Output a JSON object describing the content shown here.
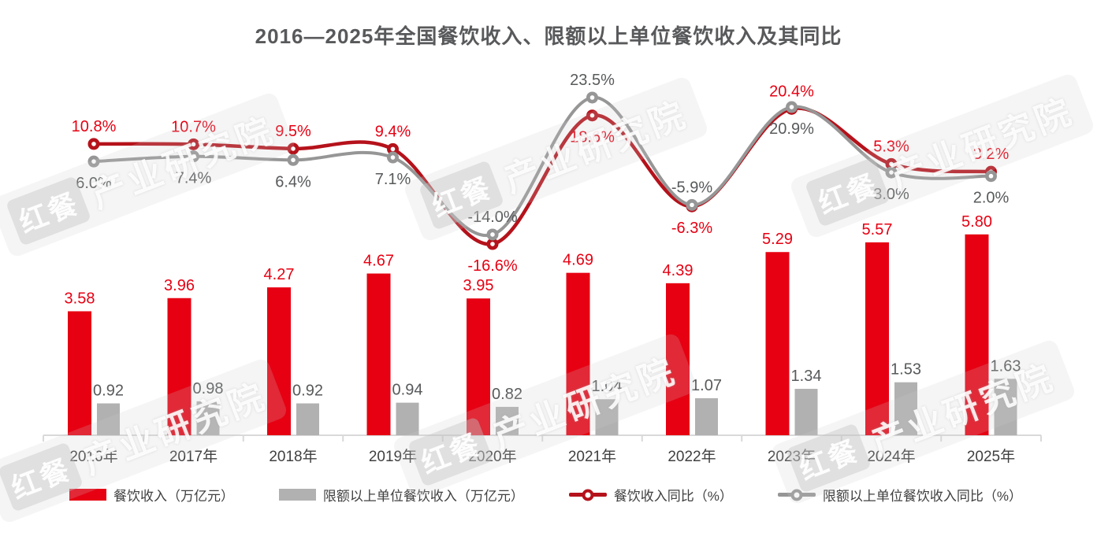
{
  "title": "2016—2025年全国餐饮收入、限额以上单位餐饮收入及其同比",
  "watermark": {
    "logo": "红餐",
    "text": "产业研究院"
  },
  "colors": {
    "bar_red": "#e60012",
    "bar_gray": "#b1b1b1",
    "line_red": "#b5121b",
    "line_gray": "#969696",
    "label_red": "#e60012",
    "label_dark_gray": "#57595b",
    "axis_gray": "#d9d9d9",
    "title_gray": "#58595b",
    "xaxis_text": "#404040"
  },
  "legend": [
    {
      "label": "餐饮收入（万亿元）",
      "type": "bar",
      "color": "#e60012"
    },
    {
      "label": "限额以上单位餐饮收入（万亿元）",
      "type": "bar",
      "color": "#b1b1b1"
    },
    {
      "label": "餐饮收入同比（%）",
      "type": "line",
      "color": "#b5121b"
    },
    {
      "label": "限额以上单位餐饮收入同比（%）",
      "type": "line",
      "color": "#969696"
    }
  ],
  "chart_data": {
    "type": "combo bar + line",
    "title": "2016—2025年全国餐饮收入、限额以上单位餐饮收入及其同比",
    "categories": [
      "2016年",
      "2017年",
      "2018年",
      "2019年",
      "2020年",
      "2021年",
      "2022年",
      "2023年",
      "2024年",
      "2025年"
    ],
    "bar_series": [
      {
        "key": "catering-revenue",
        "name": "餐饮收入（万亿元）",
        "color": "#e60012",
        "label_color": "#e60012",
        "values": [
          3.58,
          3.96,
          4.27,
          4.67,
          3.95,
          4.69,
          4.39,
          5.29,
          5.57,
          5.8
        ]
      },
      {
        "key": "large-scale-revenue",
        "name": "限额以上单位餐饮收入（万亿元）",
        "color": "#b1b1b1",
        "label_color": "#57595b",
        "values": [
          0.92,
          0.98,
          0.92,
          0.94,
          0.82,
          1.04,
          1.07,
          1.34,
          1.53,
          1.63
        ]
      }
    ],
    "line_series": [
      {
        "key": "catering-revenue-yoy",
        "name": "餐饮收入同比（%）",
        "color": "#b5121b",
        "label_color": "#e60012",
        "values": [
          10.8,
          10.7,
          9.5,
          9.4,
          -16.6,
          18.6,
          -6.3,
          20.4,
          5.3,
          3.2
        ],
        "label_side": [
          "above",
          "above",
          "above",
          "above",
          "below",
          "below",
          "below",
          "above",
          "above",
          "above"
        ]
      },
      {
        "key": "large-scale-revenue-yoy",
        "name": "限额以上单位餐饮收入同比（%）",
        "color": "#969696",
        "label_color": "#57595b",
        "values": [
          6.0,
          7.4,
          6.4,
          7.1,
          -14.0,
          23.5,
          -5.9,
          20.9,
          3.0,
          2.0
        ],
        "label_side": [
          "below",
          "below",
          "below",
          "below",
          "above",
          "above",
          "above",
          "below",
          "below",
          "below"
        ]
      }
    ],
    "bar_axis": {
      "unit": "万亿元",
      "range_hint": [
        0,
        6
      ],
      "visible": false
    },
    "line_axis": {
      "unit": "%",
      "range_hint": [
        -20,
        25
      ],
      "visible": false
    },
    "grid": false,
    "legend_position": "bottom",
    "data_labels": true
  }
}
